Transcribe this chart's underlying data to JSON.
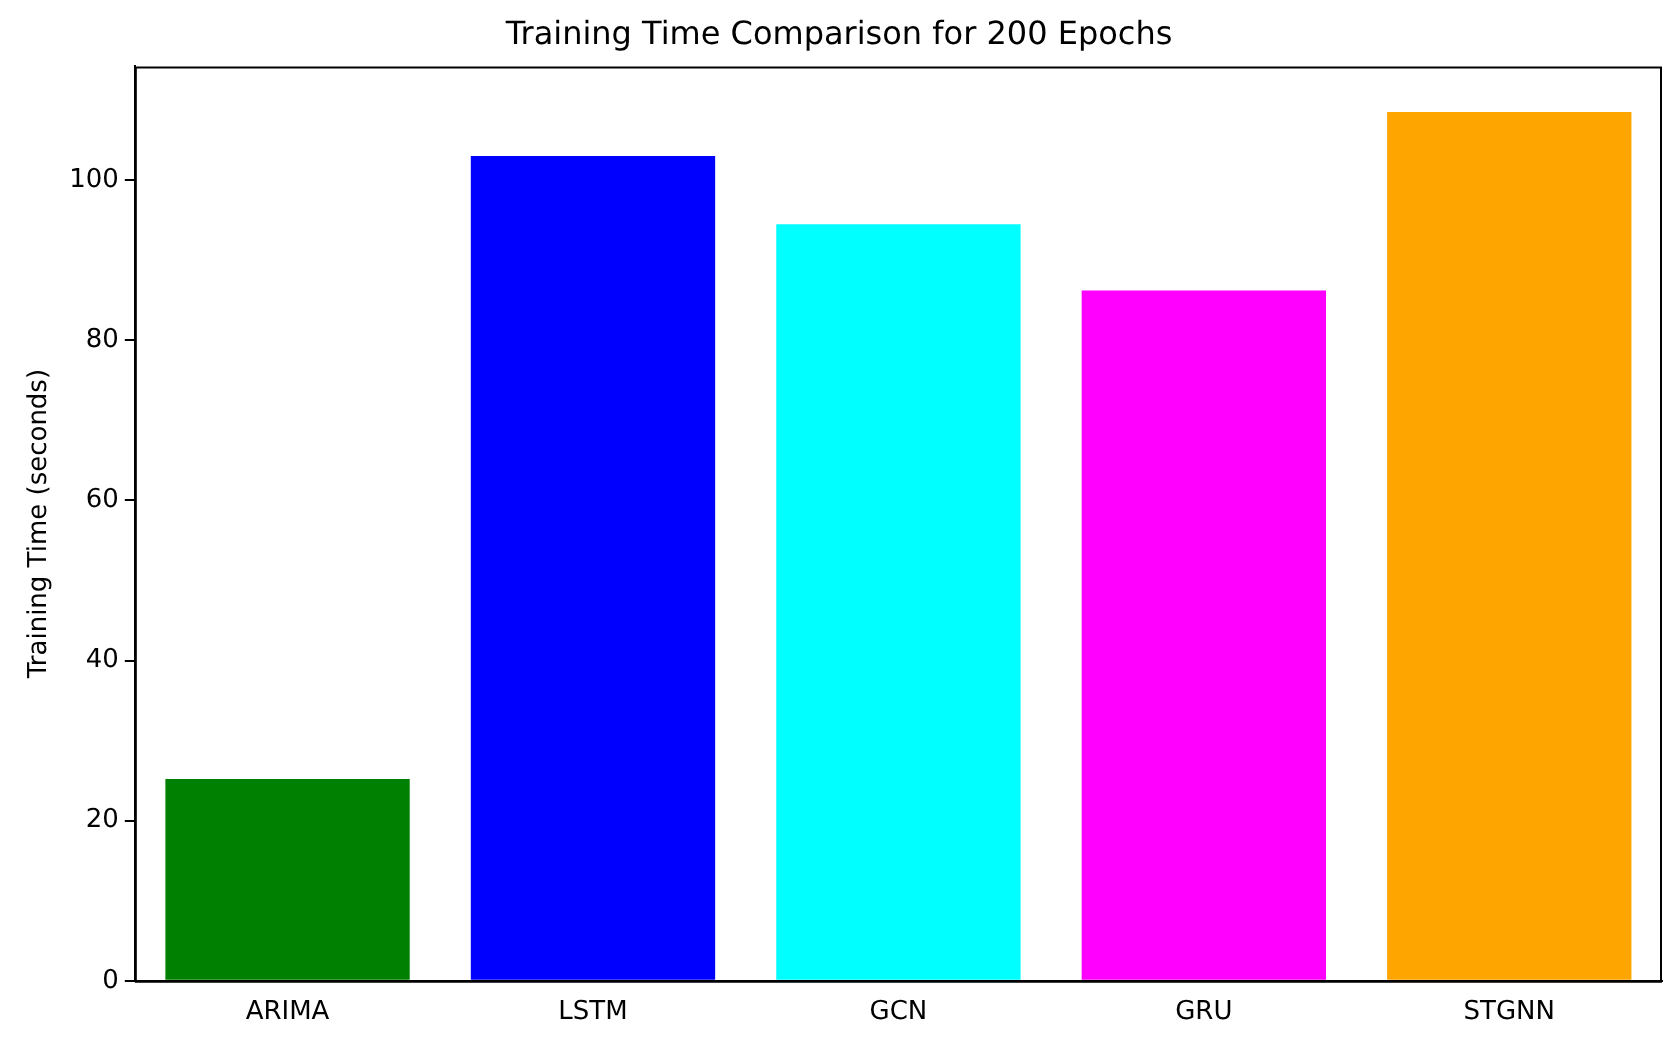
{
  "chart_data": {
    "type": "bar",
    "title": "Training Time Comparison for 200 Epochs",
    "ylabel": "Training Time (seconds)",
    "categories": [
      "ARIMA",
      "LSTM",
      "GCN",
      "GRU",
      "STGNN"
    ],
    "values": [
      25.2,
      103,
      94.5,
      86.2,
      108.5
    ],
    "colors": [
      "#008000",
      "#0000ff",
      "#00ffff",
      "#ff00ff",
      "#ffa500"
    ],
    "ylim": [
      0,
      114.2
    ],
    "yticks": [
      0,
      20,
      40,
      60,
      80,
      100
    ],
    "grid": false,
    "legend": false
  }
}
